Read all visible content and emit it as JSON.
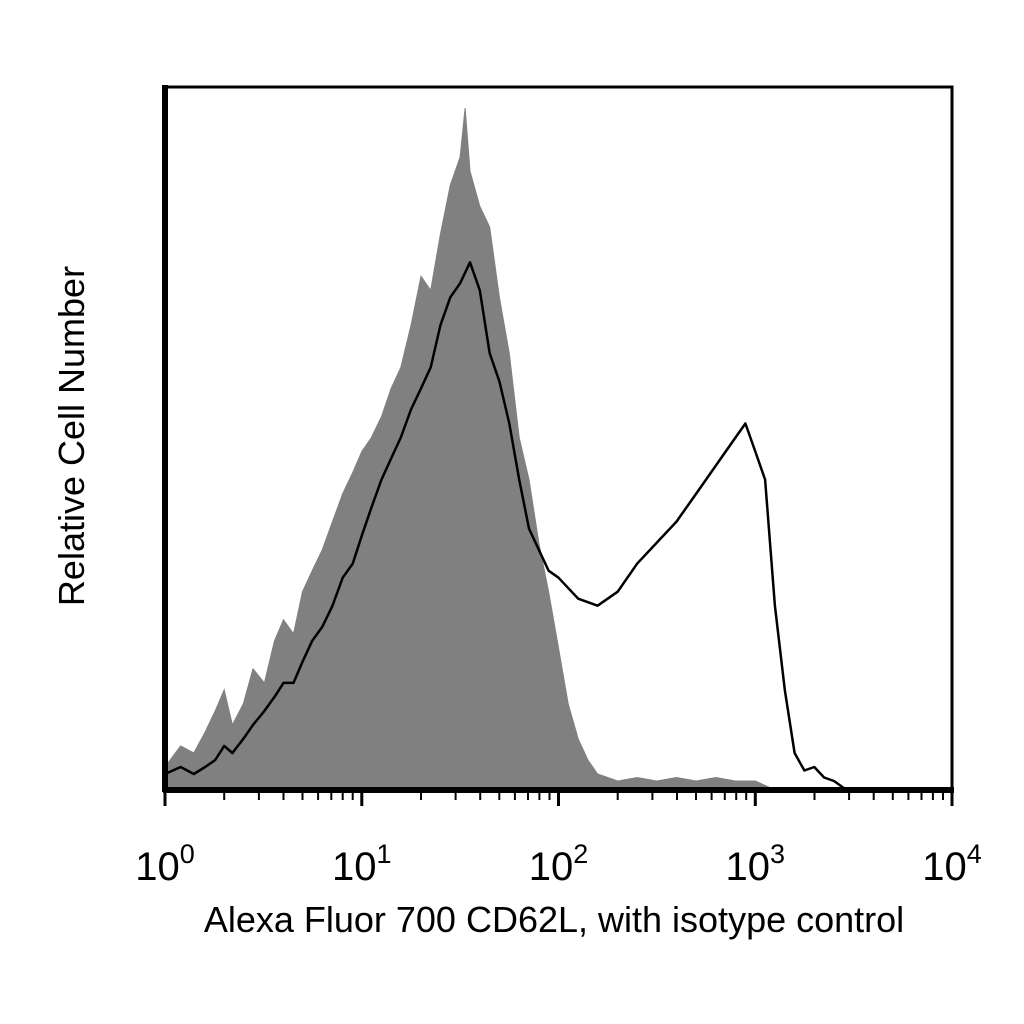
{
  "chart_data": {
    "type": "area",
    "xlabel": "Alexa Fluor 700 CD62L, with isotype control",
    "ylabel": "Relative Cell Number",
    "x_scale": "log",
    "xlim": [
      1,
      10000
    ],
    "ylim": [
      0,
      100
    ],
    "x_ticks": [
      {
        "base": "10",
        "exp": "0",
        "value": 1
      },
      {
        "base": "10",
        "exp": "1",
        "value": 10
      },
      {
        "base": "10",
        "exp": "2",
        "value": 100
      },
      {
        "base": "10",
        "exp": "3",
        "value": 1000
      },
      {
        "base": "10",
        "exp": "4",
        "value": 10000
      }
    ],
    "grid": false,
    "series": [
      {
        "style": "filled",
        "color": "#808080",
        "x": [
          1.0,
          1.2,
          1.4,
          1.6,
          1.8,
          2.0,
          2.2,
          2.5,
          2.8,
          3.2,
          3.6,
          4.0,
          4.5,
          5.0,
          5.6,
          6.3,
          7.1,
          8.0,
          9.0,
          10.0,
          11.2,
          12.6,
          14.1,
          15.8,
          17.8,
          20.0,
          22.4,
          25.1,
          28.2,
          31.6,
          33.5,
          35.5,
          39.8,
          44.7,
          50.1,
          56.2,
          63.1,
          70.8,
          79.4,
          89.1,
          100,
          112,
          126,
          141,
          158,
          178,
          200,
          251,
          316,
          398,
          501,
          631,
          794,
          1000,
          1200
        ],
        "values": [
          3,
          6,
          5,
          8,
          11,
          14,
          9,
          12,
          17,
          15,
          21,
          24,
          22,
          28,
          31,
          34,
          38,
          42,
          45,
          48,
          50,
          53,
          57,
          60,
          66,
          73,
          71,
          79,
          86,
          90,
          97,
          88,
          83,
          80,
          70,
          62,
          50,
          44,
          35,
          28,
          20,
          12,
          7,
          4,
          2,
          1.5,
          1,
          1.5,
          1,
          1.5,
          1,
          1.5,
          1,
          1,
          0
        ]
      },
      {
        "style": "line",
        "color": "#000000",
        "x": [
          1.0,
          1.2,
          1.4,
          1.6,
          1.8,
          2.0,
          2.2,
          2.5,
          2.8,
          3.2,
          3.6,
          4.0,
          4.5,
          5.0,
          5.6,
          6.3,
          7.1,
          8.0,
          9.0,
          10.0,
          11.2,
          12.6,
          14.1,
          15.8,
          17.8,
          20.0,
          22.4,
          25.1,
          28.2,
          31.6,
          35.5,
          39.8,
          44.7,
          50.1,
          56.2,
          63.1,
          70.8,
          79.4,
          89.1,
          100,
          126,
          158,
          200,
          251,
          316,
          398,
          501,
          631,
          794,
          891,
          1000,
          1122,
          1259,
          1413,
          1585,
          1778,
          1995,
          2239,
          2512,
          2818
        ],
        "values": [
          2,
          3,
          2,
          3,
          4,
          6,
          5,
          7,
          9,
          11,
          13,
          15,
          15,
          18,
          21,
          23,
          26,
          30,
          32,
          36,
          40,
          44,
          47,
          50,
          54,
          57,
          60,
          66,
          70,
          72,
          75,
          71,
          62,
          58,
          52,
          44,
          37,
          34,
          31,
          30,
          27,
          26,
          28,
          32,
          35,
          38,
          42,
          46,
          50,
          52,
          48,
          44,
          26,
          14,
          5,
          2.5,
          3,
          1.5,
          1,
          0
        ]
      }
    ]
  }
}
